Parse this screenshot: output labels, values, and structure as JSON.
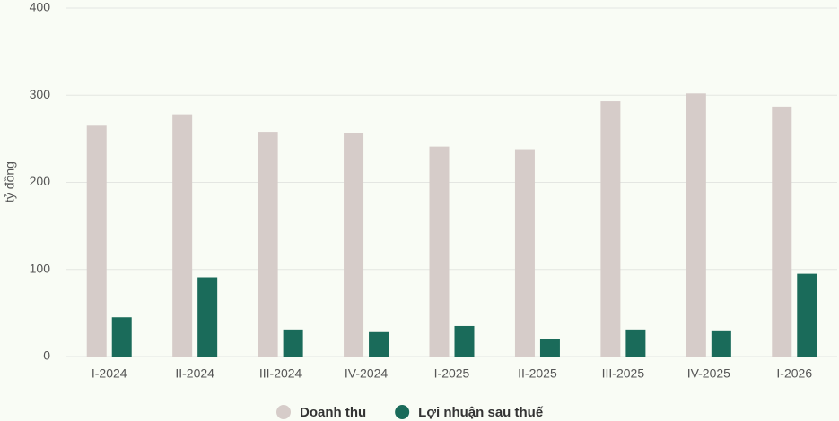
{
  "chart_data": {
    "type": "bar",
    "y_label": "tỷ đồng",
    "categories": [
      "I-2024",
      "II-2024",
      "III-2024",
      "IV-2024",
      "I-2025",
      "II-2025",
      "III-2025",
      "IV-2025",
      "I-2026"
    ],
    "series": [
      {
        "name": "Doanh thu",
        "color": "#d6ccc9",
        "values": [
          265,
          278,
          258,
          257,
          241,
          238,
          293,
          302,
          287
        ]
      },
      {
        "name": "Lợi nhuận sau thuế",
        "color": "#1a6b5a",
        "values": [
          45,
          91,
          31,
          28,
          35,
          20,
          31,
          30,
          95
        ]
      }
    ],
    "ylim": [
      0,
      400
    ],
    "yticks": [
      0,
      100,
      200,
      300,
      400
    ],
    "grid": true
  }
}
